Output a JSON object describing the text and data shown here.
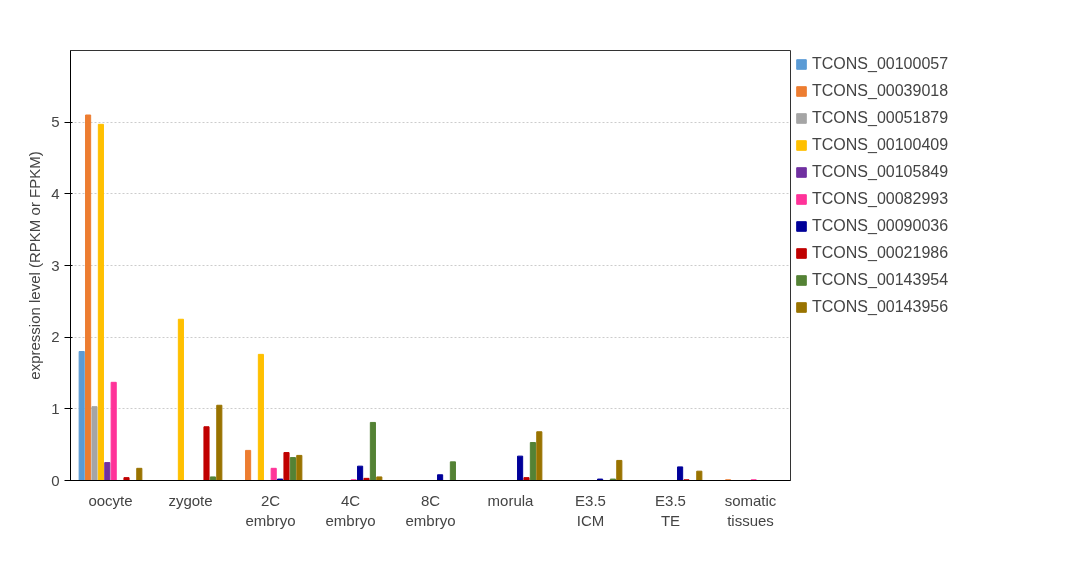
{
  "chart_data": {
    "type": "bar",
    "ylabel": "expression level (RPKM or FPKM)",
    "categories": [
      "oocyte",
      "zygote",
      "2C\nembryo",
      "4C\nembryo",
      "8C\nembryo",
      "morula",
      "E3.5\nICM",
      "E3.5\nTE",
      "somatic\ntissues"
    ],
    "series": [
      {
        "name": "TCONS_00100057",
        "color": "#5b9bd5",
        "values": [
          1.8,
          0,
          0,
          0,
          0,
          0,
          0,
          0,
          0
        ]
      },
      {
        "name": "TCONS_00039018",
        "color": "#ed7d31",
        "values": [
          5.1,
          0,
          0.42,
          0,
          0,
          0,
          0,
          0,
          0.01
        ]
      },
      {
        "name": "TCONS_00051879",
        "color": "#a5a5a5",
        "values": [
          1.03,
          0,
          0,
          0,
          0,
          0,
          0,
          0,
          0
        ]
      },
      {
        "name": "TCONS_00100409",
        "color": "#ffc000",
        "values": [
          4.97,
          2.25,
          1.76,
          0,
          0,
          0,
          0,
          0,
          0
        ]
      },
      {
        "name": "TCONS_00105849",
        "color": "#7030a0",
        "values": [
          0.25,
          0,
          0,
          0,
          0,
          0,
          0,
          0,
          0
        ]
      },
      {
        "name": "TCONS_00082993",
        "color": "#ff3399",
        "values": [
          1.37,
          0,
          0.17,
          0.01,
          0,
          0,
          0,
          0,
          0.01
        ]
      },
      {
        "name": "TCONS_00090036",
        "color": "#000099",
        "values": [
          0,
          0,
          0.02,
          0.2,
          0.08,
          0.34,
          0.02,
          0.19,
          0
        ]
      },
      {
        "name": "TCONS_00021986",
        "color": "#c00000",
        "values": [
          0.04,
          0.75,
          0.39,
          0.03,
          0,
          0.04,
          0,
          0.01,
          0
        ]
      },
      {
        "name": "TCONS_00143954",
        "color": "#548235",
        "values": [
          0,
          0.05,
          0.32,
          0.81,
          0.26,
          0.53,
          0.02,
          0,
          0
        ]
      },
      {
        "name": "TCONS_00143956",
        "color": "#997300",
        "values": [
          0.17,
          1.05,
          0.35,
          0.05,
          0,
          0.68,
          0.28,
          0.13,
          0
        ]
      }
    ],
    "ylim": [
      0,
      6
    ],
    "yticks": [
      0,
      1,
      2,
      3,
      4,
      5
    ],
    "grid": "y",
    "legend": "right"
  }
}
